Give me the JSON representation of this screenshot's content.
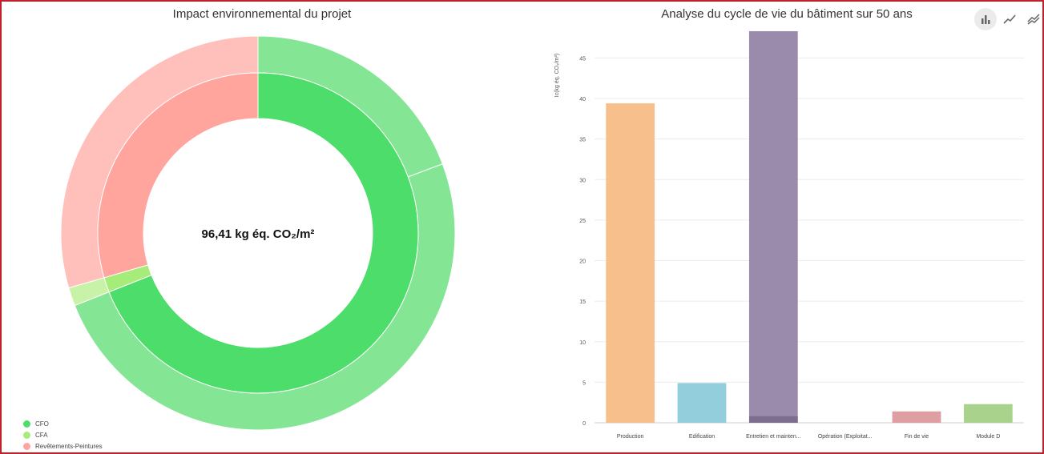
{
  "left_panel": {
    "title": "Impact environnemental du projet",
    "center_label": "96,41 kg éq. CO₂/m²",
    "legend": [
      {
        "label": "CFO",
        "color": "#4cdd6a"
      },
      {
        "label": "CFA",
        "color": "#a6ec78"
      },
      {
        "label": "Revêtements-Peintures",
        "color": "#ffa59d"
      }
    ]
  },
  "right_panel": {
    "title": "Analyse du cycle de vie du bâtiment sur 50 ans",
    "toolbar": [
      {
        "icon": "bar-chart-icon",
        "active": true
      },
      {
        "icon": "line-chart-icon",
        "active": false
      },
      {
        "icon": "multi-line-chart-icon",
        "active": false
      }
    ]
  },
  "chart_data": [
    {
      "type": "pie",
      "variant": "nested-donut",
      "title": "Impact environnemental du projet",
      "center_label": "96,41 kg éq. CO₂/m²",
      "inner_ring": [
        {
          "label": "CFO",
          "percent": 69.0,
          "color": "#4cdd6a"
        },
        {
          "label": "CFA",
          "percent": 1.5,
          "color": "#a6ec78"
        },
        {
          "label": "Revêtements-Peintures",
          "percent": 29.5,
          "color": "#ffa59d"
        }
      ],
      "outer_ring": [
        {
          "parent": "CFO",
          "percent": 19.3,
          "color": "#84e694"
        },
        {
          "parent": "CFO",
          "percent": 49.7,
          "color": "#84e694"
        },
        {
          "parent": "CFA",
          "percent": 1.5,
          "color": "#c7f2a8"
        },
        {
          "parent": "Revêtements-Peintures",
          "percent": 29.5,
          "color": "#ffc0bb"
        }
      ],
      "legend_position": "bottom-left"
    },
    {
      "type": "bar",
      "title": "Analyse du cycle de vie du bâtiment sur 50 ans",
      "xlabel": "",
      "ylabel": "Ic(kg éq. CO₂/m²)",
      "ylim": [
        0,
        48
      ],
      "yticks": [
        0,
        5,
        10,
        15,
        20,
        25,
        30,
        35,
        40,
        45
      ],
      "grid": true,
      "categories": [
        "Production",
        "Edification",
        "Entretien et mainten...",
        "Opération (Exploitat...",
        "Fin de vie",
        "Module D"
      ],
      "values": [
        39.4,
        4.9,
        48.3,
        0,
        1.4,
        2.3
      ],
      "stacked_base": [
        0,
        0,
        0.8,
        0,
        0,
        0
      ],
      "colors": [
        "#f7bf8c",
        "#92cedc",
        "#9a8aac",
        "#cccccc",
        "#df9ea2",
        "#a9d38c"
      ],
      "base_colors": [
        "#f7bf8c",
        "#92cedc",
        "#7e6e8e",
        "#cccccc",
        "#df9ea2",
        "#a9d38c"
      ]
    }
  ]
}
